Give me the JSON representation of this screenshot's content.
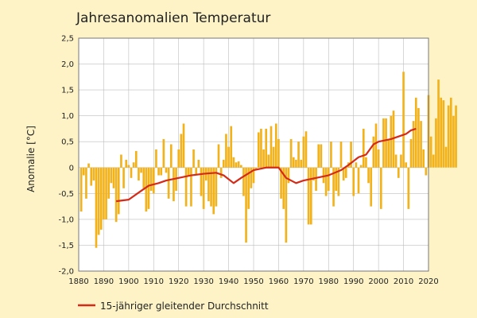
{
  "chart_data": {
    "type": "bar",
    "title": "Jahresanomalien Temperatur",
    "ylabel": "Anomalie [°C]",
    "xlabel": "",
    "xlim": [
      1880,
      2020
    ],
    "ylim": [
      -2.0,
      2.5
    ],
    "grid": true,
    "x_ticks": [
      1880,
      1890,
      1900,
      1910,
      1920,
      1930,
      1940,
      1950,
      1960,
      1970,
      1980,
      1990,
      2000,
      2010,
      2020
    ],
    "y_ticks": [
      -2.0,
      -1.5,
      -1.0,
      -0.5,
      0,
      0.5,
      1.0,
      1.5,
      2.0,
      2.5
    ],
    "y_tick_labels": [
      "-2,0",
      "-1,5",
      "-1,0",
      "-0,5",
      "0",
      "0,5",
      "1,0",
      "1,5",
      "2,0",
      "2,5"
    ],
    "bar_color": "#f2b21c",
    "line_color": "#d42a17",
    "years_start": 1881,
    "anomalies": [
      -0.85,
      -0.15,
      -0.6,
      0.08,
      -0.35,
      -0.25,
      -1.55,
      -1.3,
      -1.2,
      -1.0,
      -1.0,
      -0.6,
      -0.3,
      -0.4,
      -1.05,
      -0.9,
      0.25,
      -0.4,
      0.15,
      0.05,
      -0.2,
      0.1,
      0.32,
      -0.25,
      -0.1,
      -0.4,
      -0.85,
      -0.8,
      -0.45,
      -0.5,
      0.35,
      -0.15,
      -0.15,
      0.55,
      -0.1,
      -0.6,
      0.45,
      -0.65,
      -0.45,
      0.35,
      0.65,
      0.85,
      -0.75,
      -0.15,
      -0.75,
      0.35,
      -0.15,
      0.15,
      -0.55,
      -0.8,
      -0.25,
      -0.65,
      -0.75,
      -0.9,
      -0.75,
      0.45,
      -0.2,
      0.15,
      0.65,
      0.4,
      0.8,
      0.2,
      0.1,
      0.12,
      0.05,
      -0.55,
      -1.45,
      -0.8,
      -0.4,
      -0.3,
      -0.05,
      0.68,
      0.75,
      0.35,
      0.75,
      0.25,
      0.8,
      0.4,
      0.85,
      0.55,
      -0.6,
      -0.8,
      -1.45,
      -0.3,
      0.55,
      0.2,
      0.15,
      0.5,
      0.15,
      0.6,
      0.7,
      -1.1,
      -1.1,
      -0.25,
      -0.45,
      0.45,
      0.45,
      -0.3,
      -0.55,
      -0.45,
      0.5,
      -0.75,
      -0.45,
      -0.55,
      0.5,
      -0.25,
      -0.2,
      0.1,
      0.5,
      -0.55,
      0.1,
      -0.5,
      0.05,
      0.75,
      0.2,
      -0.3,
      -0.75,
      0.6,
      0.85,
      0.35,
      -0.8,
      0.95,
      0.95,
      0.55,
      1.0,
      1.1,
      0.25,
      -0.2,
      0.25,
      1.85,
      0.1,
      -0.8,
      0.55,
      0.9,
      1.35,
      1.15,
      0.9,
      0.35,
      -0.15,
      1.4,
      0.6,
      0.25,
      0.95,
      1.7,
      1.35,
      1.3,
      0.4,
      1.2,
      1.35,
      1.0,
      1.2
    ],
    "series": [
      {
        "name": "15-jähriger gleitender Durchschnitt",
        "type": "line",
        "x": [
          1895,
          1900,
          1905,
          1908,
          1912,
          1915,
          1920,
          1925,
          1930,
          1935,
          1938,
          1942,
          1945,
          1950,
          1955,
          1960,
          1963,
          1967,
          1970,
          1975,
          1980,
          1985,
          1988,
          1992,
          1995,
          1998,
          2000,
          2005,
          2008,
          2011,
          2013,
          2015
        ],
        "y": [
          -0.65,
          -0.62,
          -0.45,
          -0.35,
          -0.3,
          -0.25,
          -0.2,
          -0.15,
          -0.12,
          -0.1,
          -0.15,
          -0.3,
          -0.2,
          -0.05,
          0.0,
          0.0,
          -0.2,
          -0.3,
          -0.25,
          -0.2,
          -0.15,
          -0.05,
          0.05,
          0.2,
          0.25,
          0.45,
          0.5,
          0.55,
          0.6,
          0.65,
          0.72,
          0.75
        ]
      }
    ],
    "legend_position": "bottom-left"
  }
}
